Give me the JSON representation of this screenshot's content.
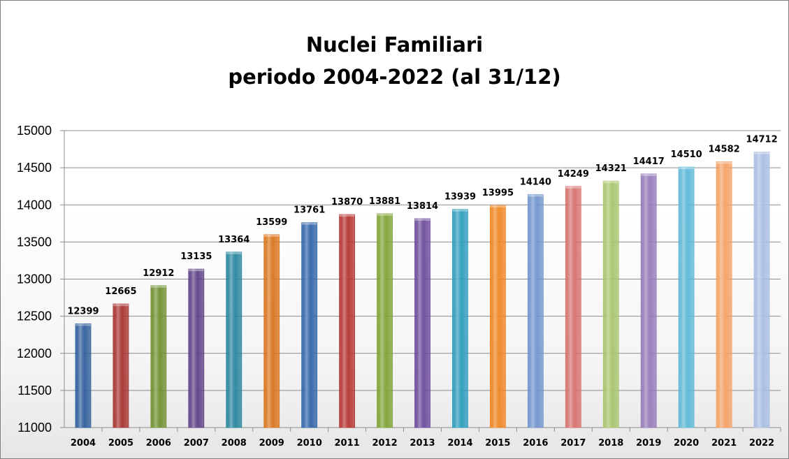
{
  "chart_data": {
    "type": "bar",
    "title": [
      "Nuclei Familiari",
      "periodo 2004-2022 (al 31/12)"
    ],
    "categories": [
      "2004",
      "2005",
      "2006",
      "2007",
      "2008",
      "2009",
      "2010",
      "2011",
      "2012",
      "2013",
      "2014",
      "2015",
      "2016",
      "2017",
      "2018",
      "2019",
      "2020",
      "2021",
      "2022"
    ],
    "values": [
      12399,
      12665,
      12912,
      13135,
      13364,
      13599,
      13761,
      13870,
      13881,
      13814,
      13939,
      13995,
      14140,
      14249,
      14321,
      14417,
      14510,
      14582,
      14712
    ],
    "ylim": [
      11000,
      15000
    ],
    "yticks": [
      11000,
      11500,
      12000,
      12500,
      13000,
      13500,
      14000,
      14500,
      15000
    ],
    "grid": true,
    "legend": "none",
    "colors": [
      "#2e5c9a",
      "#a7302c",
      "#6d8f2e",
      "#5c3f85",
      "#25849c",
      "#d9731a",
      "#2e63a8",
      "#b5322e",
      "#7da233",
      "#6a489a",
      "#2a9bbb",
      "#f0841f",
      "#6f94cc",
      "#d6706c",
      "#a7c46a",
      "#9479b8",
      "#5bb8d6",
      "#f5a062",
      "#a8bce2"
    ]
  }
}
